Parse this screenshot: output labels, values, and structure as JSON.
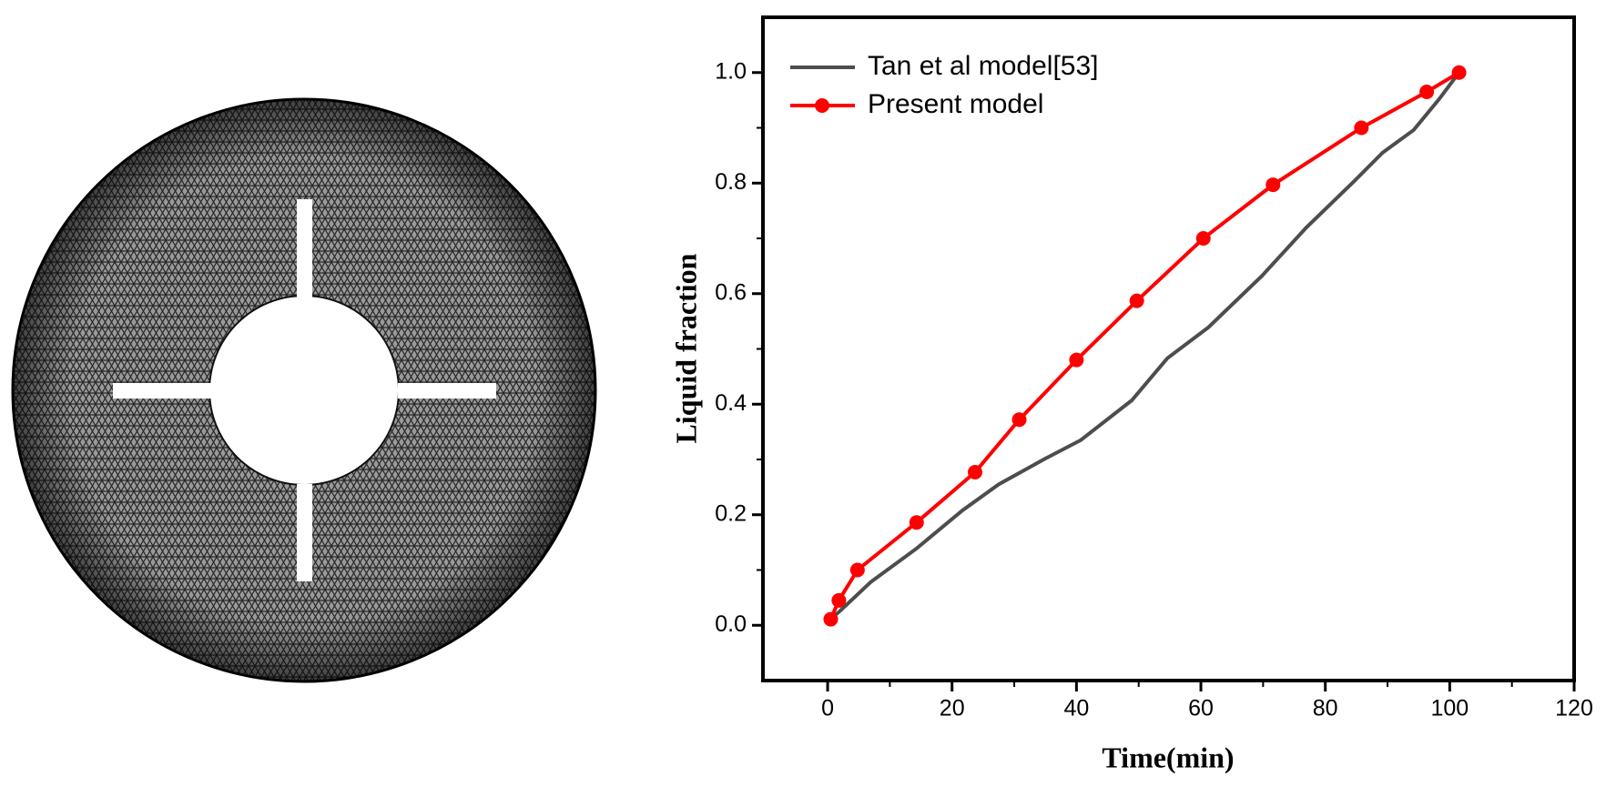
{
  "chart_data": {
    "type": "line",
    "xlabel": "Time(min)",
    "ylabel": "Liquid fraction",
    "xlim": [
      -10.4,
      120
    ],
    "ylim": [
      -0.1,
      1.1
    ],
    "xticks": [
      0,
      20,
      40,
      60,
      80,
      100,
      120
    ],
    "yticks": [
      {
        "value": 0,
        "label": "0.0"
      },
      0.2,
      0.4,
      0.6,
      0.8,
      {
        "value": 1,
        "label": "1.0"
      }
    ],
    "legend": "upper left",
    "series": [
      {
        "name": "Tan et al model[53]",
        "color": "#4d4d4d",
        "marker": false,
        "x": [
          0.5,
          2.0,
          6.9,
          14.3,
          21.7,
          27.5,
          34.9,
          40.7,
          48.9,
          54.6,
          61.2,
          69.8,
          76.9,
          84.6,
          89.2,
          94.2,
          98.3,
          101.5
        ],
        "values": [
          0.011,
          0.026,
          0.078,
          0.139,
          0.208,
          0.255,
          0.301,
          0.335,
          0.407,
          0.483,
          0.539,
          0.632,
          0.719,
          0.803,
          0.855,
          0.896,
          0.952,
          1.0
        ]
      },
      {
        "name": "Present model",
        "color": "#ff0000",
        "marker": true,
        "x": [
          0.5,
          1.8,
          4.8,
          14.3,
          23.7,
          30.8,
          40.0,
          49.7,
          60.4,
          71.6,
          85.8,
          96.3,
          101.5
        ],
        "values": [
          0.011,
          0.045,
          0.1,
          0.186,
          0.277,
          0.372,
          0.48,
          0.587,
          0.7,
          0.797,
          0.9,
          0.965,
          1.0
        ]
      }
    ]
  }
}
